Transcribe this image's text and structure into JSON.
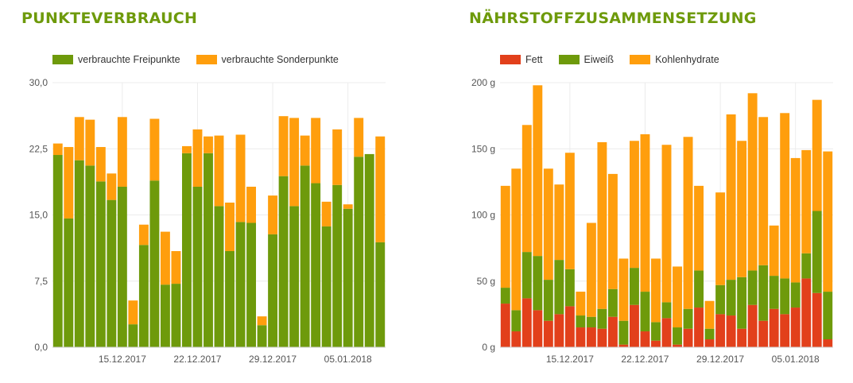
{
  "charts": {
    "left": {
      "title": "PUNKTEVERBRAUCH",
      "legend": [
        {
          "label": "verbrauchte Freipunkte",
          "color": "#6e9a0b"
        },
        {
          "label": "verbrauchte Sonderpunkte",
          "color": "#ff9e0d"
        }
      ]
    },
    "right": {
      "title": "NÄHRSTOFFZUSAMMENSETZUNG",
      "legend": [
        {
          "label": "Fett",
          "color": "#e2401b"
        },
        {
          "label": "Eiweiß",
          "color": "#6e9a0b"
        },
        {
          "label": "Kohlenhydrate",
          "color": "#ff9e0d"
        }
      ]
    }
  },
  "chart_data": [
    {
      "type": "bar",
      "stacked": true,
      "title": "PUNKTEVERBRAUCH",
      "ylim": [
        0,
        30
      ],
      "ytick_labels": [
        "0,0",
        "7,5",
        "15,0",
        "22,5",
        "30,0"
      ],
      "xtick_labels": [
        {
          "index": 6,
          "label": "15.12.2017"
        },
        {
          "index": 13,
          "label": "22.12.2017"
        },
        {
          "index": 20,
          "label": "29.12.2017"
        },
        {
          "index": 27,
          "label": "05.01.2018"
        }
      ],
      "grid": true,
      "legend_position": "top-left",
      "series": [
        {
          "name": "verbrauchte Freipunkte",
          "color": "#6e9a0b",
          "values": [
            21.8,
            14.6,
            21.2,
            20.6,
            18.8,
            16.7,
            18.2,
            2.6,
            11.6,
            18.9,
            7.1,
            7.2,
            22.0,
            18.2,
            22.0,
            16.0,
            10.9,
            14.2,
            14.1,
            2.5,
            12.8,
            19.4,
            16.0,
            20.6,
            18.6,
            13.7,
            18.4,
            15.7,
            21.6,
            21.9,
            11.9
          ]
        },
        {
          "name": "verbrauchte Sonderpunkte",
          "color": "#ff9e0d",
          "values": [
            1.3,
            8.1,
            4.9,
            5.2,
            3.9,
            3.0,
            7.9,
            2.7,
            2.3,
            7.0,
            6.0,
            3.7,
            0.8,
            6.5,
            1.9,
            8.0,
            5.5,
            9.9,
            4.1,
            1.0,
            4.4,
            6.8,
            10.0,
            3.4,
            7.4,
            2.8,
            6.3,
            0.5,
            4.4,
            0.0,
            12.0
          ]
        }
      ]
    },
    {
      "type": "bar",
      "stacked": true,
      "title": "NÄHRSTOFFZUSAMMENSETZUNG",
      "ylim": [
        0,
        200
      ],
      "ytick_labels": [
        "0 g",
        "50 g",
        "100 g",
        "150 g",
        "200 g"
      ],
      "xtick_labels": [
        {
          "index": 6,
          "label": "15.12.2017"
        },
        {
          "index": 13,
          "label": "22.12.2017"
        },
        {
          "index": 20,
          "label": "29.12.2017"
        },
        {
          "index": 27,
          "label": "05.01.2018"
        }
      ],
      "grid": true,
      "legend_position": "top-left",
      "series": [
        {
          "name": "Fett",
          "color": "#e2401b",
          "values": [
            33,
            12,
            37,
            28,
            20,
            25,
            31,
            15,
            15,
            14,
            23,
            2,
            32,
            12,
            5,
            22,
            2,
            14,
            30,
            6,
            25,
            24,
            14,
            32,
            20,
            29,
            25,
            30,
            52,
            41,
            6
          ]
        },
        {
          "name": "Eiweiß",
          "color": "#6e9a0b",
          "values": [
            12,
            16,
            35,
            41,
            31,
            41,
            28,
            9,
            8,
            15,
            21,
            18,
            28,
            30,
            14,
            12,
            13,
            15,
            28,
            8,
            22,
            27,
            39,
            26,
            42,
            25,
            27,
            19,
            19,
            62,
            36
          ]
        },
        {
          "name": "Kohlenhydrate",
          "color": "#ff9e0d",
          "values": [
            77,
            107,
            96,
            129,
            84,
            57,
            88,
            18,
            71,
            126,
            87,
            47,
            96,
            119,
            48,
            119,
            46,
            130,
            64,
            21,
            70,
            125,
            103,
            134,
            112,
            38,
            125,
            94,
            78,
            84,
            106
          ]
        }
      ]
    }
  ]
}
